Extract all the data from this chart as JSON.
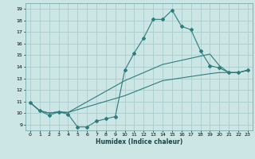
{
  "title": "",
  "xlabel": "Humidex (Indice chaleur)",
  "ylabel": "",
  "bg_color": "#cce5e5",
  "line_color": "#2e7d7d",
  "grid_color": "#aacccc",
  "xlim": [
    -0.5,
    23.5
  ],
  "ylim": [
    8.5,
    19.5
  ],
  "xticks": [
    0,
    1,
    2,
    3,
    4,
    5,
    6,
    7,
    8,
    9,
    10,
    11,
    12,
    13,
    14,
    15,
    16,
    17,
    18,
    19,
    20,
    21,
    22,
    23
  ],
  "yticks": [
    9,
    10,
    11,
    12,
    13,
    14,
    15,
    16,
    17,
    18,
    19
  ],
  "curve1_x": [
    0,
    1,
    2,
    3,
    4,
    5,
    6,
    7,
    8,
    9,
    10,
    11,
    12,
    13,
    14,
    15,
    16,
    17,
    18,
    19,
    20,
    21,
    22,
    23
  ],
  "curve1_y": [
    10.9,
    10.2,
    9.8,
    10.1,
    9.9,
    8.8,
    8.8,
    9.3,
    9.5,
    9.7,
    13.7,
    15.2,
    16.5,
    18.1,
    18.1,
    18.9,
    17.5,
    17.2,
    15.4,
    14.1,
    13.9,
    13.5,
    13.5,
    13.7
  ],
  "curve2_x": [
    0,
    1,
    2,
    3,
    4,
    10,
    14,
    19,
    20,
    21,
    22,
    23
  ],
  "curve2_y": [
    10.9,
    10.2,
    10.0,
    10.1,
    10.05,
    12.8,
    14.2,
    15.1,
    14.1,
    13.5,
    13.5,
    13.7
  ],
  "curve3_x": [
    0,
    1,
    2,
    3,
    4,
    10,
    14,
    19,
    20,
    21,
    22,
    23
  ],
  "curve3_y": [
    10.9,
    10.2,
    10.0,
    10.1,
    10.05,
    11.5,
    12.8,
    13.4,
    13.5,
    13.5,
    13.5,
    13.7
  ]
}
